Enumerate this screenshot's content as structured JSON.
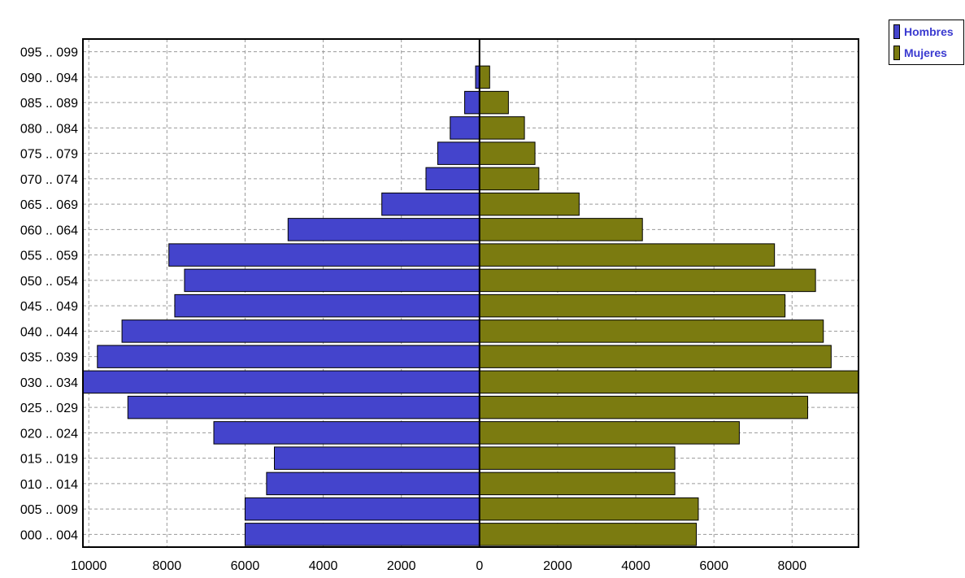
{
  "chart_data": {
    "type": "bar",
    "orientation": "horizontal",
    "categories": [
      "000 .. 004",
      "005 .. 009",
      "010 .. 014",
      "015 .. 019",
      "020 .. 024",
      "025 .. 029",
      "030 .. 034",
      "035 .. 039",
      "040 .. 044",
      "045 .. 049",
      "050 .. 054",
      "055 .. 059",
      "060 .. 064",
      "065 .. 069",
      "070 .. 074",
      "075 .. 079",
      "080 .. 084",
      "085 .. 089",
      "090 .. 094",
      "095 .. 099"
    ],
    "series": [
      {
        "name": "Hombres",
        "color": "#4444cc",
        "values": [
          6000,
          6000,
          5450,
          5250,
          6800,
          9000,
          10150,
          9780,
          9150,
          7800,
          7550,
          7950,
          4900,
          2500,
          1370,
          1070,
          750,
          380,
          100,
          0
        ]
      },
      {
        "name": "Mujeres",
        "color": "#7b7b10",
        "values": [
          5550,
          5600,
          5000,
          5000,
          6650,
          8400,
          9700,
          9000,
          8800,
          7820,
          8600,
          7550,
          4170,
          2550,
          1520,
          1420,
          1150,
          740,
          260,
          0
        ]
      }
    ],
    "x_ticks": [
      "10000",
      "8000",
      "6000",
      "4000",
      "2000",
      "0",
      "2000",
      "4000",
      "6000",
      "8000"
    ],
    "xlim": [
      -10150,
      9700
    ],
    "grid": true,
    "legend_position": "top-right"
  }
}
